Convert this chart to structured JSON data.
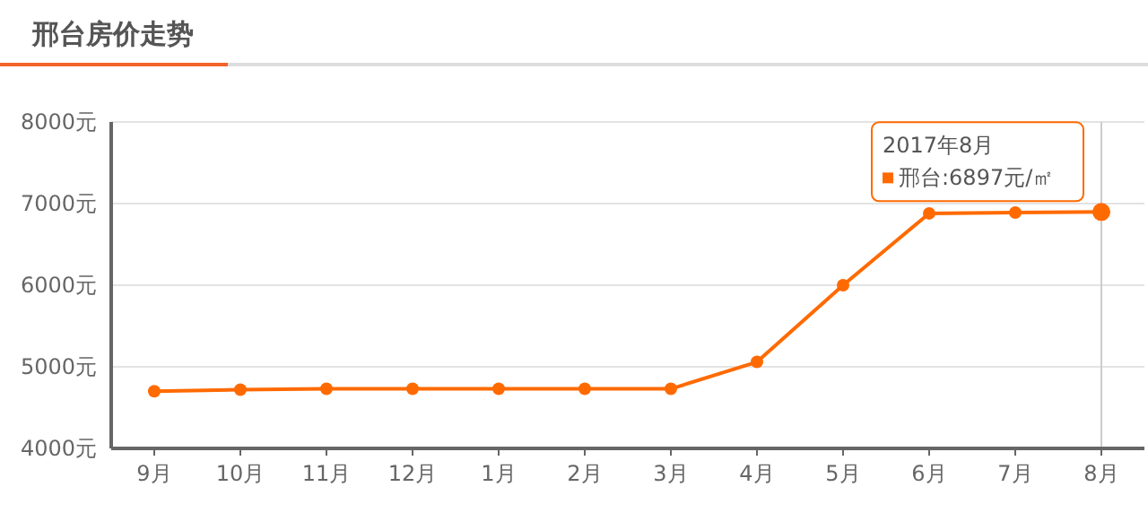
{
  "chart_data": {
    "type": "line",
    "title": "邢台房价走势",
    "categories": [
      "9月",
      "10月",
      "11月",
      "12月",
      "1月",
      "2月",
      "3月",
      "4月",
      "5月",
      "6月",
      "7月",
      "8月"
    ],
    "series": [
      {
        "color": "#ff6a00",
        "values": [
          4700,
          4720,
          4730,
          4730,
          4730,
          4730,
          4730,
          5060,
          6000,
          6880,
          6890,
          6897
        ]
      }
    ],
    "ylim": [
      4000,
      8000
    ],
    "yticks": [
      {
        "value": 4000,
        "label": "4000元"
      },
      {
        "value": 5000,
        "label": "5000元"
      },
      {
        "value": 6000,
        "label": "6000元"
      },
      {
        "value": 7000,
        "label": "7000元"
      },
      {
        "value": 8000,
        "label": "8000元"
      }
    ],
    "grid": "y",
    "marker": "circle",
    "line_style": "solid",
    "ref_lines": [
      {
        "axis": "x",
        "value": "8月",
        "color": "#cccccc"
      }
    ],
    "annotations": [
      "2017年8月",
      {
        "text": "邢台:6897元/㎡",
        "x": "8月",
        "y": 6897
      }
    ]
  }
}
